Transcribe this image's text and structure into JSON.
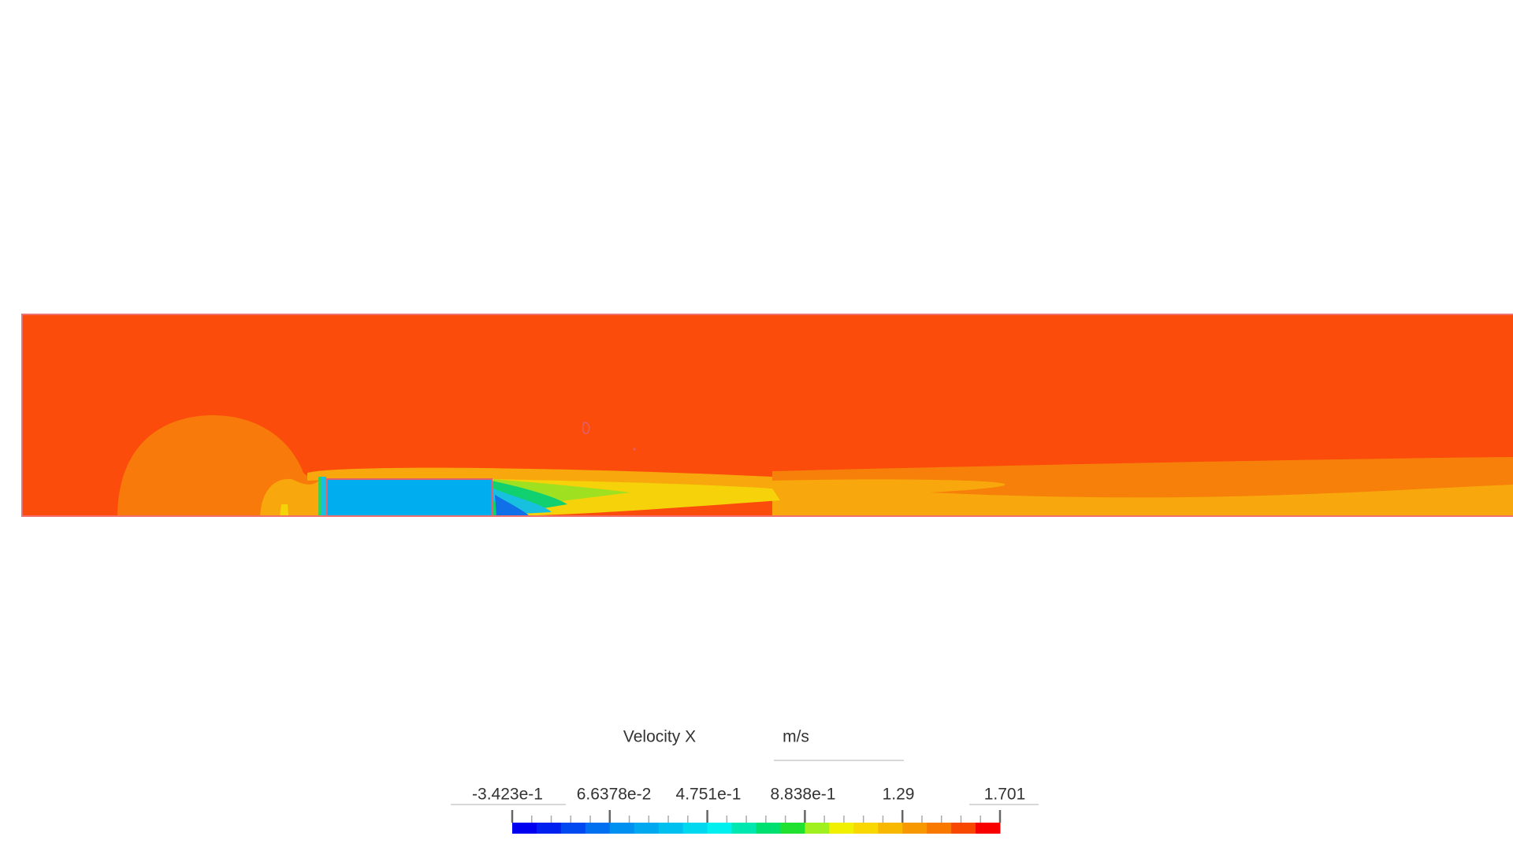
{
  "legend": {
    "title": "Velocity X",
    "unit": "m/s",
    "tick_labels": [
      "-3.423e-1",
      "6.6378e-2",
      "4.751e-1",
      "8.838e-1",
      "1.29",
      "1.701"
    ]
  }
}
